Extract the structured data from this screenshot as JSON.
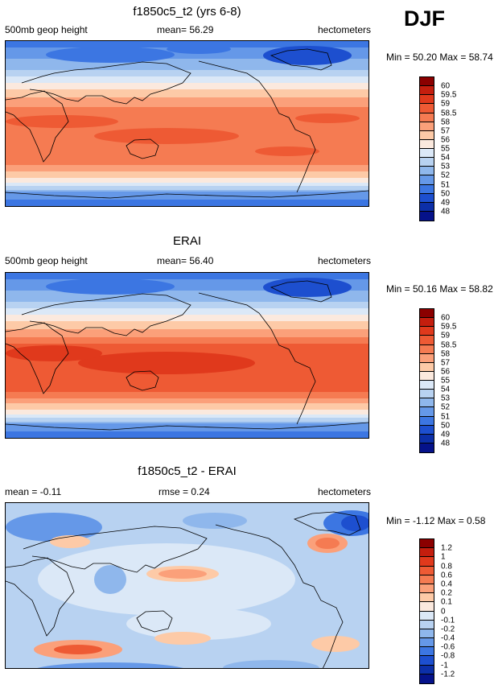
{
  "season": "DJF",
  "panels": [
    {
      "title": "f1850c5_t2 (yrs 6-8)",
      "left_label": "500mb geop height",
      "center_label": "mean=  56.29",
      "right_label": "hectometers",
      "minmax": "Min =  50.20 Max =  58.74",
      "colorbar_labels": [
        "60",
        "59.5",
        "59",
        "58.5",
        "58",
        "57",
        "56",
        "55",
        "54",
        "53",
        "52",
        "51",
        "50",
        "49",
        "48"
      ],
      "colors": [
        "#8b0000",
        "#c41e0e",
        "#e0391c",
        "#ee5a34",
        "#f57b52",
        "#fba07a",
        "#fdcaa7",
        "#fbe9de",
        "#dbe8f7",
        "#b8d2f1",
        "#8fb7ec",
        "#6598e8",
        "#3c76e2",
        "#1d4fcf",
        "#0c2fa8",
        "#05128a"
      ]
    },
    {
      "title": "ERAI",
      "left_label": "500mb geop height",
      "center_label": "mean=  56.40",
      "right_label": "hectometers",
      "minmax": "Min =  50.16 Max =  58.82",
      "colorbar_labels": [
        "60",
        "59.5",
        "59",
        "58.5",
        "58",
        "57",
        "56",
        "55",
        "54",
        "53",
        "52",
        "51",
        "50",
        "49",
        "48"
      ],
      "colors": [
        "#8b0000",
        "#c41e0e",
        "#e0391c",
        "#ee5a34",
        "#f57b52",
        "#fba07a",
        "#fdcaa7",
        "#fbe9de",
        "#dbe8f7",
        "#b8d2f1",
        "#8fb7ec",
        "#6598e8",
        "#3c76e2",
        "#1d4fcf",
        "#0c2fa8",
        "#05128a"
      ]
    },
    {
      "title": "f1850c5_t2 - ERAI",
      "left_label": "mean =  -0.11",
      "center_label": "rmse =   0.24",
      "right_label": "hectometers",
      "minmax": "Min =  -1.12 Max =   0.58",
      "colorbar_labels": [
        "1.2",
        "1",
        "0.8",
        "0.6",
        "0.4",
        "0.2",
        "0.1",
        "0",
        "-0.1",
        "-0.2",
        "-0.4",
        "-0.6",
        "-0.8",
        "-1",
        "-1.2"
      ],
      "colors": [
        "#8b0000",
        "#c41e0e",
        "#e0391c",
        "#ee5a34",
        "#f57b52",
        "#fba07a",
        "#fdcaa7",
        "#fbe9de",
        "#dbe8f7",
        "#b8d2f1",
        "#8fb7ec",
        "#6598e8",
        "#3c76e2",
        "#1d4fcf",
        "#0c2fa8",
        "#05128a"
      ]
    }
  ]
}
